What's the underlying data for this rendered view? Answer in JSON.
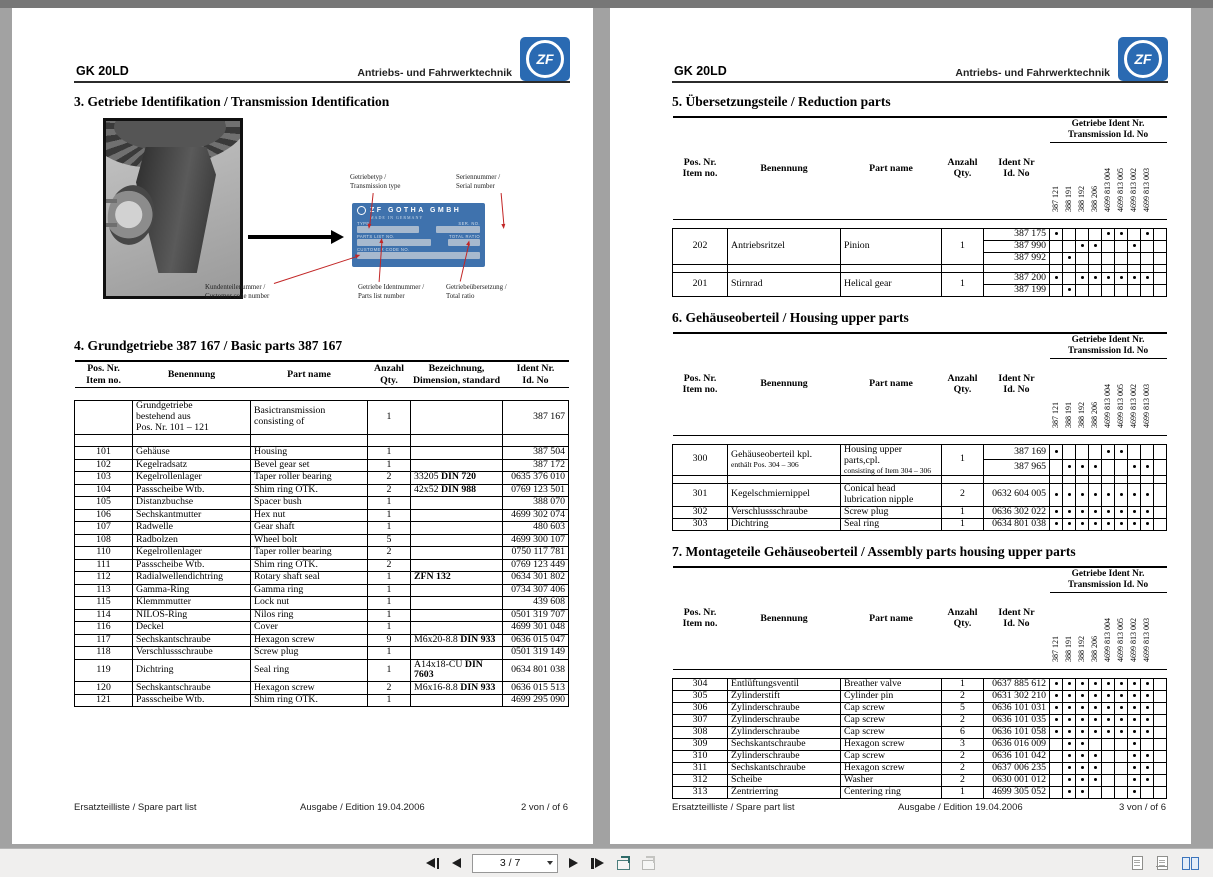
{
  "viewer": {
    "background_color": "#a2a2a2",
    "toolbar": {
      "page_indicator": "3 / 7",
      "accent_color": "#3b74bc",
      "icons": [
        "first-page",
        "previous-page",
        "page-select-dropdown",
        "next-page",
        "last-page",
        "previous-view",
        "next-view",
        "single-page-layout",
        "continuous-layout",
        "two-page-layout"
      ]
    }
  },
  "left_page": {
    "header": {
      "model": "GK 20LD",
      "division": "Antriebs- und Fahrwerktechnik",
      "logo_text": "ZF"
    },
    "section3": {
      "title": "3. Getriebe Identifikation / Transmission Identification",
      "callouts": {
        "type": "Getriebetyp /\nTransmission type",
        "serial": "Seriennummer /\nSerial number",
        "customer": "Kundenteilenummer /\nCustomer code number",
        "parts_list": "Getriebe Identnummer /\nParts list number",
        "ratio": "Getriebeübersetzung /\nTotal ratio"
      },
      "plate": {
        "brand": "ZF GOTHA GMBH",
        "made_in": "MADE IN GERMANY",
        "type_label": "TYPE",
        "serial_label": "SER. NO.",
        "parts_label": "PARTS LIST NO.",
        "ratio_label": "TOTAL RATIO",
        "customer_label": "CUSTOMER CODE NO.",
        "blue": "#3f72ad"
      }
    },
    "section4": {
      "title": "4. Grundgetriebe 387 167 / Basic parts 387 167",
      "columns": [
        "Pos. Nr.\nItem no.",
        "Benennung",
        "Part name",
        "Anzahl\nQty.",
        "Bezeichnung,\nDimension, standard",
        "Ident Nr.\nId. No"
      ],
      "rows": [
        {
          "group": true,
          "de": "Grundgetriebe\nbestehend aus\nPos. Nr. 101 – 121",
          "en": "Basictransmission\nconsisting of",
          "qty": "1",
          "ident": "387 167"
        },
        {
          "spacer": true
        },
        {
          "pos": "101",
          "de": "Gehäuse",
          "en": "Housing",
          "qty": "1",
          "ident": "387 504"
        },
        {
          "pos": "102",
          "de": "Kegelradsatz",
          "en": "Bevel gear set",
          "qty": "1",
          "ident": "387 172"
        },
        {
          "pos": "103",
          "de": "Kegelrollenlager",
          "en": "Taper roller bearing",
          "qty": "2",
          "dim": "33205",
          "std": "DIN 720",
          "ident": "0635 376 010"
        },
        {
          "pos": "104",
          "de": "Passscheibe Wtb.",
          "en": "Shim ring OTK.",
          "qty": "2",
          "dim": "42x52",
          "std": "DIN 988",
          "ident": "0769 123 501"
        },
        {
          "pos": "105",
          "de": "Distanzbuchse",
          "en": "Spacer bush",
          "qty": "1",
          "ident": "388 070"
        },
        {
          "pos": "106",
          "de": "Sechskantmutter",
          "en": "Hex nut",
          "qty": "1",
          "ident": "4699 302 074"
        },
        {
          "pos": "107",
          "de": "Radwelle",
          "en": "Gear shaft",
          "qty": "1",
          "ident": "480 603"
        },
        {
          "pos": "108",
          "de": "Radbolzen",
          "en": "Wheel bolt",
          "qty": "5",
          "ident": "4699 300 107"
        },
        {
          "pos": "110",
          "de": "Kegelrollenlager",
          "en": "Taper roller bearing",
          "qty": "2",
          "ident": "0750 117 781"
        },
        {
          "pos": "111",
          "de": "Passscheibe Wtb.",
          "en": "Shim ring OTK.",
          "qty": "2",
          "ident": "0769 123 449"
        },
        {
          "pos": "112",
          "de": "Radialwellendichtring",
          "en": "Rotary shaft seal",
          "qty": "1",
          "std": "ZFN 132",
          "ident": "0634 301 802"
        },
        {
          "pos": "113",
          "de": "Gamma-Ring",
          "en": "Gamma ring",
          "qty": "1",
          "ident": "0734 307 406"
        },
        {
          "pos": "115",
          "de": "Klemmmutter",
          "en": "Lock nut",
          "qty": "1",
          "ident": "439 608"
        },
        {
          "pos": "114",
          "de": "NILOS-Ring",
          "en": "Nilos ring",
          "qty": "1",
          "ident": "0501 319 707"
        },
        {
          "pos": "116",
          "de": "Deckel",
          "en": "Cover",
          "qty": "1",
          "ident": "4699 301 048"
        },
        {
          "pos": "117",
          "de": "Sechskantschraube",
          "en": "Hexagon screw",
          "qty": "9",
          "dim": "M6x20-8.8",
          "std": "DIN 933",
          "ident": "0636 015 047"
        },
        {
          "pos": "118",
          "de": "Verschlussschraube",
          "en": "Screw plug",
          "qty": "1",
          "ident": "0501 319 149"
        },
        {
          "pos": "119",
          "de": "Dichtring",
          "en": "Seal ring",
          "qty": "1",
          "dim": "A14x18-CU",
          "std": "DIN 7603",
          "ident": "0634 801 038"
        },
        {
          "pos": "120",
          "de": "Sechskantschraube",
          "en": "Hexagon screw",
          "qty": "2",
          "dim": "M6x16-8.8",
          "std": "DIN 933",
          "ident": "0636 015 513"
        },
        {
          "pos": "121",
          "de": "Passscheibe Wtb.",
          "en": "Shim ring OTK.",
          "qty": "1",
          "ident": "4699 295 090"
        }
      ]
    },
    "footer": {
      "left": "Ersatzteilliste / Spare part list",
      "center": "Ausgabe / Edition 19.04.2006",
      "right": "2 von / of 6"
    }
  },
  "right_page": {
    "header": {
      "model": "GK 20LD",
      "division": "Antriebs- und Fahrwerktechnik",
      "logo_text": "ZF"
    },
    "table_columns": [
      "Pos. Nr.\nItem no.",
      "Benennung",
      "Part name",
      "Anzahl\nQty.",
      "Ident Nr\nId. No"
    ],
    "ident_header": "Getriebe Ident Nr.\nTransmission Id. No",
    "ident_columns": [
      "387 121",
      "388 191",
      "388 192",
      "388 206",
      "4699 813 004",
      "4699 813 005",
      "4699 813 002",
      "4699 813 003"
    ],
    "section5": {
      "title": "5. Übersetzungsteile / Reduction parts",
      "rows": [
        {
          "pos": "202",
          "de": "Antriebsritzel",
          "en": "Pinion",
          "qty": "1",
          "idents": [
            {
              "no": "387 175",
              "dots": [
                1,
                5,
                6,
                8
              ]
            },
            {
              "no": "387 990",
              "dots": [
                3,
                4,
                7
              ]
            },
            {
              "no": "387 992",
              "dots": [
                2
              ]
            }
          ]
        },
        {
          "spacer": true
        },
        {
          "pos": "201",
          "de": "Stirnrad",
          "en": "Helical gear",
          "qty": "1",
          "idents": [
            {
              "no": "387 200",
              "dots": [
                1,
                3,
                4,
                5,
                6,
                7,
                8
              ]
            },
            {
              "no": "387 199",
              "dots": [
                2
              ]
            }
          ]
        }
      ]
    },
    "section6": {
      "title": "6. Gehäuseoberteil / Housing upper parts",
      "rows": [
        {
          "pos": "300",
          "de": "Gehäuseoberteil kpl.",
          "de_sub": "enthält Pos. 304 – 306",
          "en": "Housing upper parts,cpl.",
          "en_sub": "consisting of Item 304 – 306",
          "qty": "1",
          "idents": [
            {
              "no": "387 169",
              "dots": [
                1,
                5,
                6
              ]
            },
            {
              "no": "387 965",
              "dots": [
                2,
                3,
                4,
                7,
                8
              ]
            }
          ]
        },
        {
          "spacer": true
        },
        {
          "pos": "301",
          "de": "Kegelschmiernippel",
          "en": "Conical head lubrication nipple",
          "qty": "2",
          "ident": "0632 604 005",
          "dots": [
            1,
            2,
            3,
            4,
            5,
            6,
            7,
            8
          ]
        },
        {
          "pos": "302",
          "de": "Verschlussschraube",
          "en": "Screw plug",
          "qty": "1",
          "ident": "0636 302 022",
          "dots": [
            1,
            2,
            3,
            4,
            5,
            6,
            7,
            8
          ]
        },
        {
          "pos": "303",
          "de": "Dichtring",
          "en": "Seal ring",
          "qty": "1",
          "ident": "0634 801 038",
          "dots": [
            1,
            2,
            3,
            4,
            5,
            6,
            7,
            8
          ]
        }
      ]
    },
    "section7": {
      "title": "7. Montageteile Gehäuseoberteil / Assembly parts housing upper parts",
      "rows": [
        {
          "pos": "304",
          "de": "Entlüftungsventil",
          "en": "Breather valve",
          "qty": "1",
          "ident": "0637 885 612",
          "dots": [
            1,
            2,
            3,
            4,
            5,
            6,
            7,
            8
          ]
        },
        {
          "pos": "305",
          "de": "Zylinderstift",
          "en": "Cylinder pin",
          "qty": "2",
          "ident": "0631 302 210",
          "dots": [
            1,
            2,
            3,
            4,
            5,
            6,
            7,
            8
          ]
        },
        {
          "pos": "306",
          "de": "Zylinderschraube",
          "en": "Cap screw",
          "qty": "5",
          "ident": "0636 101 031",
          "dots": [
            1,
            2,
            3,
            4,
            5,
            6,
            7,
            8
          ]
        },
        {
          "pos": "307",
          "de": "Zylinderschraube",
          "en": "Cap screw",
          "qty": "2",
          "ident": "0636 101 035",
          "dots": [
            1,
            2,
            3,
            4,
            5,
            6,
            7,
            8
          ]
        },
        {
          "pos": "308",
          "de": "Zylinderschraube",
          "en": "Cap screw",
          "qty": "6",
          "ident": "0636 101 058",
          "dots": [
            1,
            2,
            3,
            4,
            5,
            6,
            7,
            8
          ]
        },
        {
          "pos": "309",
          "de": "Sechskantschraube",
          "en": "Hexagon screw",
          "qty": "3",
          "ident": "0636 016 009",
          "dots": [
            2,
            3,
            7
          ]
        },
        {
          "pos": "310",
          "de": "Zylinderschraube",
          "en": "Cap screw",
          "qty": "2",
          "ident": "0636 101 042",
          "dots": [
            2,
            3,
            4,
            7,
            8
          ]
        },
        {
          "pos": "311",
          "de": "Sechskantschraube",
          "en": "Hexagon screw",
          "qty": "2",
          "ident": "0637 006 235",
          "dots": [
            2,
            3,
            4,
            7,
            8
          ]
        },
        {
          "pos": "312",
          "de": "Scheibe",
          "en": "Washer",
          "qty": "2",
          "ident": "0630 001 012",
          "dots": [
            2,
            3,
            4,
            7,
            8
          ]
        },
        {
          "pos": "313",
          "de": "Zentrierring",
          "en": "Centering ring",
          "qty": "1",
          "ident": "4699 305 052",
          "dots": [
            2,
            3,
            7
          ]
        }
      ]
    },
    "footer": {
      "left": "Ersatzteilliste / Spare part list",
      "center": "Ausgabe / Edition 19.04.2006",
      "right": "3 von / of 6"
    }
  }
}
